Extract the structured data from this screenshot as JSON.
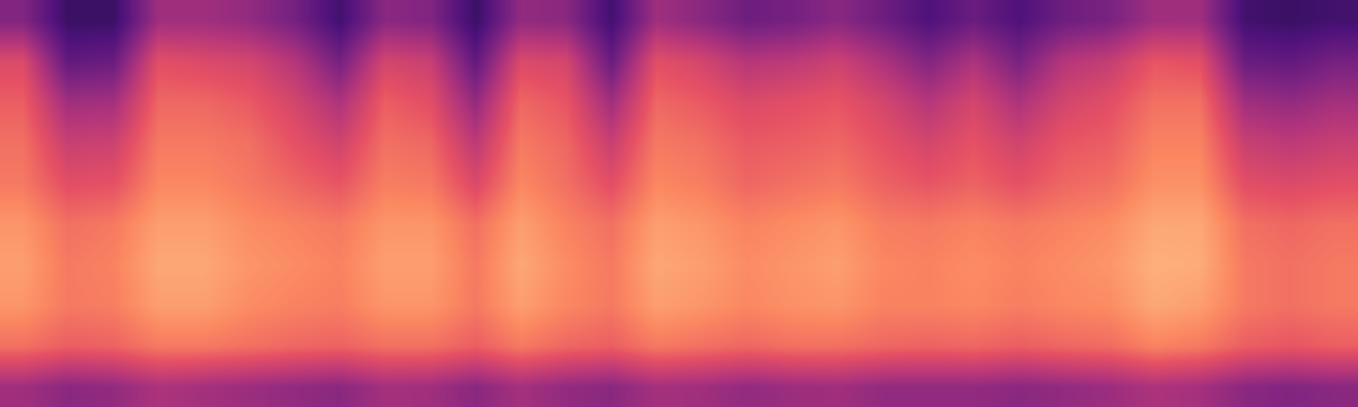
{
  "chart_data": {
    "type": "heatmap",
    "tick_labels": false,
    "color": "magma",
    "zlim": [
      0,
      1
    ],
    "cells": [
      [
        0.38,
        0.2,
        0.2,
        0.45,
        0.45,
        0.42,
        0.35,
        0.22,
        0.4,
        0.38,
        0.2,
        0.42,
        0.4,
        0.22,
        0.45,
        0.4,
        0.33,
        0.35,
        0.4,
        0.33,
        0.25,
        0.32,
        0.25,
        0.33,
        0.36,
        0.45,
        0.45,
        0.22,
        0.2,
        0.22
      ],
      [
        0.6,
        0.3,
        0.32,
        0.62,
        0.6,
        0.58,
        0.5,
        0.35,
        0.58,
        0.55,
        0.3,
        0.6,
        0.58,
        0.32,
        0.62,
        0.58,
        0.5,
        0.52,
        0.56,
        0.48,
        0.38,
        0.48,
        0.36,
        0.5,
        0.54,
        0.64,
        0.62,
        0.32,
        0.3,
        0.35
      ],
      [
        0.66,
        0.45,
        0.46,
        0.68,
        0.68,
        0.65,
        0.58,
        0.48,
        0.66,
        0.62,
        0.42,
        0.68,
        0.64,
        0.45,
        0.68,
        0.65,
        0.6,
        0.62,
        0.64,
        0.58,
        0.5,
        0.58,
        0.48,
        0.58,
        0.62,
        0.7,
        0.7,
        0.45,
        0.42,
        0.46
      ],
      [
        0.7,
        0.55,
        0.56,
        0.72,
        0.72,
        0.7,
        0.63,
        0.57,
        0.7,
        0.68,
        0.52,
        0.72,
        0.68,
        0.55,
        0.72,
        0.7,
        0.65,
        0.66,
        0.68,
        0.63,
        0.58,
        0.63,
        0.57,
        0.64,
        0.66,
        0.74,
        0.74,
        0.55,
        0.52,
        0.55
      ],
      [
        0.72,
        0.62,
        0.63,
        0.75,
        0.75,
        0.72,
        0.68,
        0.64,
        0.73,
        0.72,
        0.6,
        0.75,
        0.7,
        0.62,
        0.75,
        0.73,
        0.68,
        0.7,
        0.72,
        0.67,
        0.64,
        0.67,
        0.63,
        0.68,
        0.7,
        0.77,
        0.77,
        0.62,
        0.6,
        0.62
      ],
      [
        0.78,
        0.7,
        0.72,
        0.8,
        0.8,
        0.76,
        0.74,
        0.72,
        0.78,
        0.78,
        0.7,
        0.8,
        0.74,
        0.7,
        0.8,
        0.78,
        0.74,
        0.76,
        0.78,
        0.73,
        0.72,
        0.74,
        0.72,
        0.74,
        0.76,
        0.82,
        0.82,
        0.7,
        0.68,
        0.7
      ],
      [
        0.8,
        0.72,
        0.74,
        0.82,
        0.82,
        0.78,
        0.76,
        0.74,
        0.8,
        0.8,
        0.72,
        0.82,
        0.76,
        0.72,
        0.82,
        0.8,
        0.76,
        0.78,
        0.8,
        0.75,
        0.74,
        0.76,
        0.74,
        0.76,
        0.78,
        0.84,
        0.83,
        0.72,
        0.7,
        0.72
      ],
      [
        0.78,
        0.72,
        0.73,
        0.8,
        0.8,
        0.76,
        0.74,
        0.73,
        0.78,
        0.78,
        0.72,
        0.8,
        0.75,
        0.72,
        0.8,
        0.78,
        0.75,
        0.77,
        0.78,
        0.74,
        0.74,
        0.75,
        0.73,
        0.75,
        0.76,
        0.82,
        0.8,
        0.72,
        0.7,
        0.72
      ],
      [
        0.7,
        0.66,
        0.67,
        0.72,
        0.72,
        0.7,
        0.68,
        0.67,
        0.7,
        0.7,
        0.66,
        0.72,
        0.68,
        0.66,
        0.72,
        0.7,
        0.68,
        0.7,
        0.7,
        0.68,
        0.67,
        0.68,
        0.66,
        0.68,
        0.69,
        0.74,
        0.72,
        0.66,
        0.64,
        0.66
      ],
      [
        0.45,
        0.4,
        0.42,
        0.48,
        0.46,
        0.44,
        0.42,
        0.4,
        0.46,
        0.45,
        0.4,
        0.46,
        0.42,
        0.4,
        0.46,
        0.45,
        0.42,
        0.44,
        0.45,
        0.42,
        0.42,
        0.42,
        0.4,
        0.42,
        0.44,
        0.48,
        0.46,
        0.4,
        0.38,
        0.4
      ]
    ]
  }
}
